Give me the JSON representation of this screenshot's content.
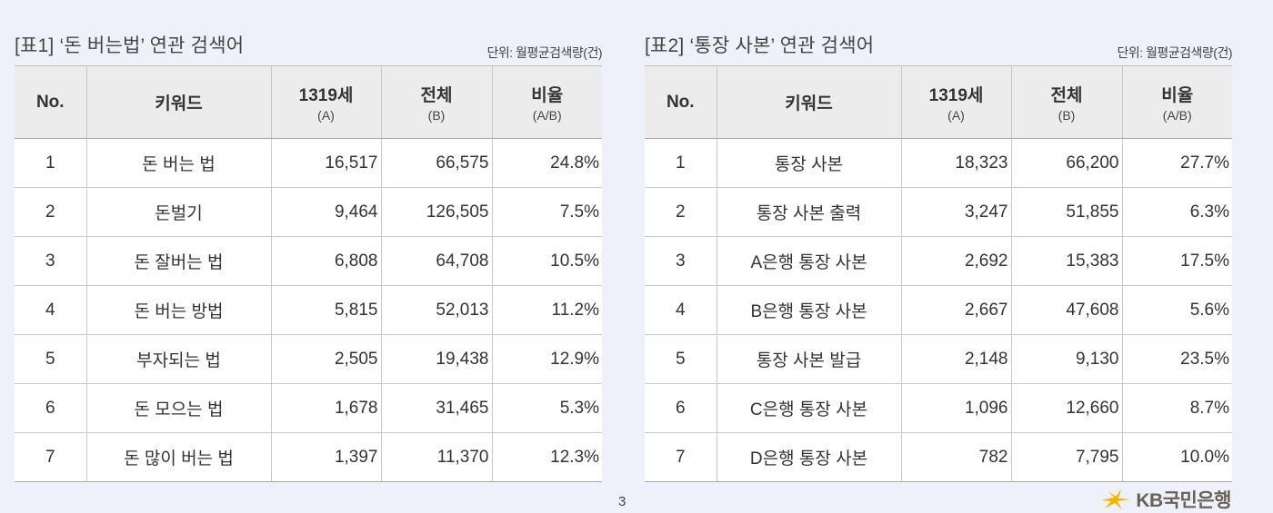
{
  "tables": [
    {
      "title": "[표1] ‘돈 버는법’ 연관 검색어",
      "unit": "단위: 월평균검색량(건)",
      "headers": [
        {
          "main": "No.",
          "sub": ""
        },
        {
          "main": "키워드",
          "sub": ""
        },
        {
          "main": "1319세",
          "sub": "(A)"
        },
        {
          "main": "전체",
          "sub": "(B)"
        },
        {
          "main": "비율",
          "sub": "(A/B)"
        }
      ],
      "rows": [
        {
          "no": "1",
          "keyword": "돈 버는 법",
          "a": "16,517",
          "b": "66,575",
          "ratio": "24.8%"
        },
        {
          "no": "2",
          "keyword": "돈벌기",
          "a": "9,464",
          "b": "126,505",
          "ratio": "7.5%"
        },
        {
          "no": "3",
          "keyword": "돈 잘버는 법",
          "a": "6,808",
          "b": "64,708",
          "ratio": "10.5%"
        },
        {
          "no": "4",
          "keyword": "돈 버는 방법",
          "a": "5,815",
          "b": "52,013",
          "ratio": "11.2%"
        },
        {
          "no": "5",
          "keyword": "부자되는 법",
          "a": "2,505",
          "b": "19,438",
          "ratio": "12.9%"
        },
        {
          "no": "6",
          "keyword": "돈 모으는 법",
          "a": "1,678",
          "b": "31,465",
          "ratio": "5.3%"
        },
        {
          "no": "7",
          "keyword": "돈 많이 버는 법",
          "a": "1,397",
          "b": "11,370",
          "ratio": "12.3%"
        }
      ]
    },
    {
      "title": "[표2] ‘통장 사본’ 연관 검색어",
      "unit": "단위: 월평균검색량(건)",
      "headers": [
        {
          "main": "No.",
          "sub": ""
        },
        {
          "main": "키워드",
          "sub": ""
        },
        {
          "main": "1319세",
          "sub": "(A)"
        },
        {
          "main": "전체",
          "sub": "(B)"
        },
        {
          "main": "비율",
          "sub": "(A/B)"
        }
      ],
      "rows": [
        {
          "no": "1",
          "keyword": "통장 사본",
          "a": "18,323",
          "b": "66,200",
          "ratio": "27.7%"
        },
        {
          "no": "2",
          "keyword": "통장 사본 출력",
          "a": "3,247",
          "b": "51,855",
          "ratio": "6.3%"
        },
        {
          "no": "3",
          "keyword": "A은행 통장 사본",
          "a": "2,692",
          "b": "15,383",
          "ratio": "17.5%"
        },
        {
          "no": "4",
          "keyword": "B은행 통장 사본",
          "a": "2,667",
          "b": "47,608",
          "ratio": "5.6%"
        },
        {
          "no": "5",
          "keyword": "통장 사본 발급",
          "a": "2,148",
          "b": "9,130",
          "ratio": "23.5%"
        },
        {
          "no": "6",
          "keyword": "C은행 통장 사본",
          "a": "1,096",
          "b": "12,660",
          "ratio": "8.7%"
        },
        {
          "no": "7",
          "keyword": "D은행 통장 사본",
          "a": "782",
          "b": "7,795",
          "ratio": "10.0%"
        }
      ]
    }
  ],
  "page_number": "3",
  "logo": {
    "icon": "kb-star-icon",
    "text": "KB국민은행",
    "color": "#f5b400"
  }
}
